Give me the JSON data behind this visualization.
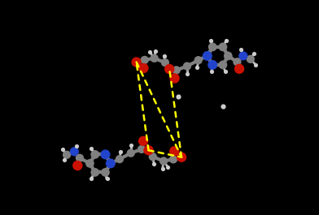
{
  "background_color": "#000000",
  "figsize": [
    3.92,
    2.65
  ],
  "dpi": 100,
  "gray": "#808080",
  "dark_gray": "#505050",
  "lt_gray": "#b8b8b8",
  "red": "#cc1100",
  "blue": "#2244cc",
  "white_h": "#cccccc",
  "yellow": "#ffff00",
  "xlim": [
    0.0,
    1.0
  ],
  "ylim": [
    0.0,
    1.0
  ]
}
